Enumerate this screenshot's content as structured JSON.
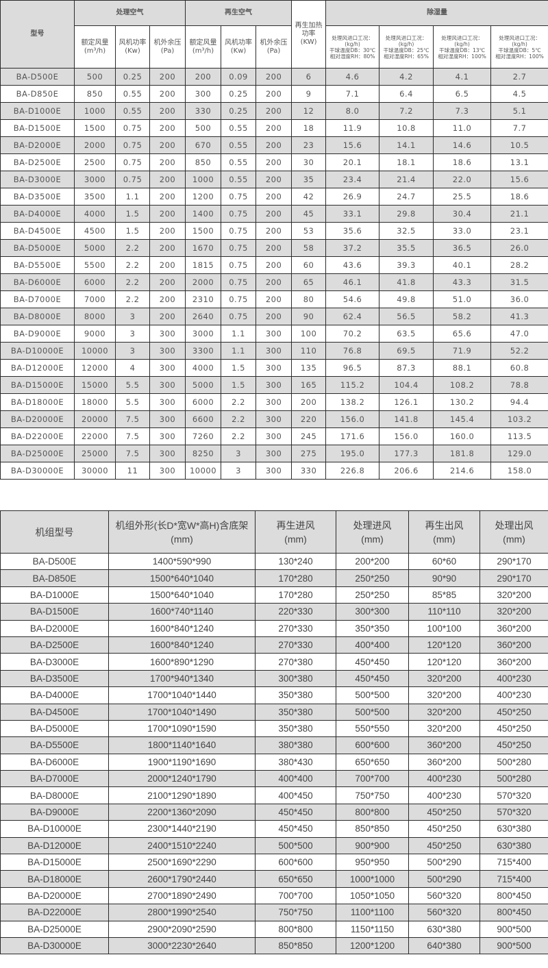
{
  "table1": {
    "model_header": "型号",
    "group_process": "处理空气",
    "group_regen": "再生空气",
    "heat_header": [
      "再生加热",
      "功率",
      "(KW)"
    ],
    "group_dehum": "除湿量",
    "sub_headers": [
      [
        "额定风量",
        "(m³/h)"
      ],
      [
        "风机功率",
        "(Kw)"
      ],
      [
        "机外余压",
        "(Pa)"
      ],
      [
        "额定风量",
        "(m³/h)"
      ],
      [
        "风机功率",
        "(Kw)"
      ],
      [
        "机外余压",
        "(Pa)"
      ]
    ],
    "dehum_headers": [
      [
        "处理风进口工况：",
        "(kg/h)",
        "干球温度DB：30℃",
        "相对湿度RH：80%"
      ],
      [
        "处理风进口工况：",
        "(kg/h)",
        "干球温度DB：25℃",
        "相对湿度RH：65%"
      ],
      [
        "处理风进口工况：",
        "(kg/h)",
        "干球温度DB：13℃",
        "相对湿度RH：100%"
      ],
      [
        "处理风进口工况：",
        "(kg/h)",
        "干球温度DB：5℃",
        "相对湿度RH：100%"
      ]
    ],
    "rows": [
      [
        "BA-D500E",
        "500",
        "0.25",
        "200",
        "200",
        "0.09",
        "200",
        "6",
        "4.6",
        "4.2",
        "4.1",
        "2.7"
      ],
      [
        "BA-D850E",
        "850",
        "0.55",
        "200",
        "300",
        "0.25",
        "200",
        "9",
        "7.1",
        "6.4",
        "6.5",
        "4.5"
      ],
      [
        "BA-D1000E",
        "1000",
        "0.55",
        "200",
        "330",
        "0.25",
        "200",
        "12",
        "8.0",
        "7.2",
        "7.3",
        "5.1"
      ],
      [
        "BA-D1500E",
        "1500",
        "0.75",
        "200",
        "500",
        "0.55",
        "200",
        "18",
        "11.9",
        "10.8",
        "11.0",
        "7.7"
      ],
      [
        "BA-D2000E",
        "2000",
        "0.75",
        "200",
        "670",
        "0.55",
        "200",
        "23",
        "15.6",
        "14.1",
        "14.6",
        "10.5"
      ],
      [
        "BA-D2500E",
        "2500",
        "0.75",
        "200",
        "850",
        "0.55",
        "200",
        "30",
        "20.1",
        "18.1",
        "18.6",
        "13.1"
      ],
      [
        "BA-D3000E",
        "3000",
        "0.75",
        "200",
        "1000",
        "0.55",
        "200",
        "35",
        "23.4",
        "21.4",
        "22.0",
        "15.6"
      ],
      [
        "BA-D3500E",
        "3500",
        "1.1",
        "200",
        "1200",
        "0.75",
        "200",
        "42",
        "26.9",
        "24.7",
        "25.5",
        "18.6"
      ],
      [
        "BA-D4000E",
        "4000",
        "1.5",
        "200",
        "1400",
        "0.75",
        "200",
        "45",
        "33.1",
        "29.8",
        "30.4",
        "21.1"
      ],
      [
        "BA-D4500E",
        "4500",
        "1.5",
        "200",
        "1500",
        "0.75",
        "200",
        "53",
        "35.6",
        "32.5",
        "33.0",
        "23.1"
      ],
      [
        "BA-D5000E",
        "5000",
        "2.2",
        "200",
        "1670",
        "0.75",
        "200",
        "58",
        "37.2",
        "35.5",
        "36.5",
        "26.0"
      ],
      [
        "BA-D5500E",
        "5500",
        "2.2",
        "200",
        "1815",
        "0.75",
        "200",
        "60",
        "43.6",
        "39.3",
        "40.1",
        "28.2"
      ],
      [
        "BA-D6000E",
        "6000",
        "2.2",
        "200",
        "2000",
        "0.75",
        "200",
        "65",
        "46.1",
        "41.8",
        "43.3",
        "31.5"
      ],
      [
        "BA-D7000E",
        "7000",
        "2.2",
        "200",
        "2310",
        "0.75",
        "200",
        "80",
        "54.6",
        "49.8",
        "51.0",
        "36.0"
      ],
      [
        "BA-D8000E",
        "8000",
        "3",
        "200",
        "2640",
        "0.75",
        "200",
        "90",
        "62.4",
        "56.5",
        "58.2",
        "41.3"
      ],
      [
        "BA-D9000E",
        "9000",
        "3",
        "300",
        "3000",
        "1.1",
        "300",
        "100",
        "70.2",
        "63.5",
        "65.6",
        "47.0"
      ],
      [
        "BA-D10000E",
        "10000",
        "3",
        "300",
        "3300",
        "1.1",
        "300",
        "110",
        "76.8",
        "69.5",
        "71.9",
        "52.2"
      ],
      [
        "BA-D12000E",
        "12000",
        "4",
        "300",
        "4000",
        "1.5",
        "300",
        "135",
        "96.5",
        "87.3",
        "88.1",
        "60.8"
      ],
      [
        "BA-D15000E",
        "15000",
        "5.5",
        "300",
        "5000",
        "1.5",
        "300",
        "165",
        "115.2",
        "104.4",
        "108.2",
        "78.8"
      ],
      [
        "BA-D18000E",
        "18000",
        "5.5",
        "300",
        "6000",
        "2.2",
        "300",
        "200",
        "138.2",
        "126.1",
        "130.2",
        "94.4"
      ],
      [
        "BA-D20000E",
        "20000",
        "7.5",
        "300",
        "6600",
        "2.2",
        "300",
        "220",
        "156.0",
        "141.8",
        "145.4",
        "103.2"
      ],
      [
        "BA-D22000E",
        "22000",
        "7.5",
        "300",
        "7260",
        "2.2",
        "300",
        "245",
        "171.6",
        "156.0",
        "160.0",
        "113.5"
      ],
      [
        "BA-D25000E",
        "25000",
        "7.5",
        "300",
        "8250",
        "3",
        "300",
        "275",
        "195.0",
        "177.3",
        "181.8",
        "129.0"
      ],
      [
        "BA-D30000E",
        "30000",
        "11",
        "300",
        "10000",
        "3",
        "300",
        "330",
        "226.8",
        "206.6",
        "214.6",
        "158.0"
      ]
    ]
  },
  "table2": {
    "headers": [
      [
        "机组型号",
        ""
      ],
      [
        "机组外形(长D*宽W*高H)含底架",
        "(mm)"
      ],
      [
        "再生进风",
        "(mm)"
      ],
      [
        "处理进风",
        "(mm)"
      ],
      [
        "再生出风",
        "(mm)"
      ],
      [
        "处理出风",
        "(mm)"
      ]
    ],
    "rows": [
      [
        "BA-D500E",
        "1400*590*990",
        "130*240",
        "200*200",
        "60*60",
        "290*170"
      ],
      [
        "BA-D850E",
        "1500*640*1040",
        "170*280",
        "250*250",
        "90*90",
        "290*170"
      ],
      [
        "BA-D1000E",
        "1500*640*1040",
        "170*280",
        "250*250",
        "85*85",
        "320*200"
      ],
      [
        "BA-D1500E",
        "1600*740*1140",
        "220*330",
        "300*300",
        "110*110",
        "320*200"
      ],
      [
        "BA-D2000E",
        "1600*840*1240",
        "270*330",
        "350*350",
        "100*100",
        "360*200"
      ],
      [
        "BA-D2500E",
        "1600*840*1240",
        "270*330",
        "400*400",
        "120*120",
        "360*200"
      ],
      [
        "BA-D3000E",
        "1600*890*1290",
        "270*380",
        "450*450",
        "120*120",
        "360*200"
      ],
      [
        "BA-D3500E",
        "1700*940*1340",
        "300*380",
        "450*450",
        "320*200",
        "400*230"
      ],
      [
        "BA-D4000E",
        "1700*1040*1440",
        "350*380",
        "500*500",
        "320*200",
        "400*230"
      ],
      [
        "BA-D4500E",
        "1700*1040*1490",
        "350*380",
        "500*500",
        "320*200",
        "450*250"
      ],
      [
        "BA-D5000E",
        "1700*1090*1590",
        "350*380",
        "550*550",
        "320*200",
        "450*250"
      ],
      [
        "BA-D5500E",
        "1800*1140*1640",
        "380*380",
        "600*600",
        "360*200",
        "450*250"
      ],
      [
        "BA-D6000E",
        "1900*1190*1690",
        "380*430",
        "650*650",
        "360*200",
        "500*280"
      ],
      [
        "BA-D7000E",
        "2000*1240*1790",
        "400*400",
        "700*700",
        "400*230",
        "500*280"
      ],
      [
        "BA-D8000E",
        "2100*1290*1890",
        "400*450",
        "750*750",
        "400*230",
        "570*320"
      ],
      [
        "BA-D9000E",
        "2200*1360*2090",
        "450*450",
        "800*800",
        "450*250",
        "570*320"
      ],
      [
        "BA-D10000E",
        "2300*1440*2190",
        "450*450",
        "850*850",
        "450*250",
        "630*380"
      ],
      [
        "BA-D12000E",
        "2400*1510*2240",
        "500*500",
        "900*900",
        "450*250",
        "630*380"
      ],
      [
        "BA-D15000E",
        "2500*1690*2290",
        "600*600",
        "950*950",
        "500*290",
        "715*400"
      ],
      [
        "BA-D18000E",
        "2600*1790*2440",
        "650*650",
        "1000*1000",
        "500*290",
        "715*400"
      ],
      [
        "BA-D20000E",
        "2700*1890*2490",
        "700*700",
        "1050*1050",
        "560*320",
        "800*450"
      ],
      [
        "BA-D22000E",
        "2800*1990*2540",
        "750*750",
        "1100*1100",
        "560*320",
        "800*450"
      ],
      [
        "BA-D25000E",
        "2900*2090*2590",
        "800*800",
        "1150*1150",
        "630*380",
        "900*500"
      ],
      [
        "BA-D30000E",
        "3000*2230*2640",
        "850*850",
        "1200*1200",
        "640*380",
        "900*500"
      ]
    ]
  },
  "colors": {
    "row_gray": "#dcdcdc",
    "border": "#2a2a2a",
    "text": "#555555"
  }
}
